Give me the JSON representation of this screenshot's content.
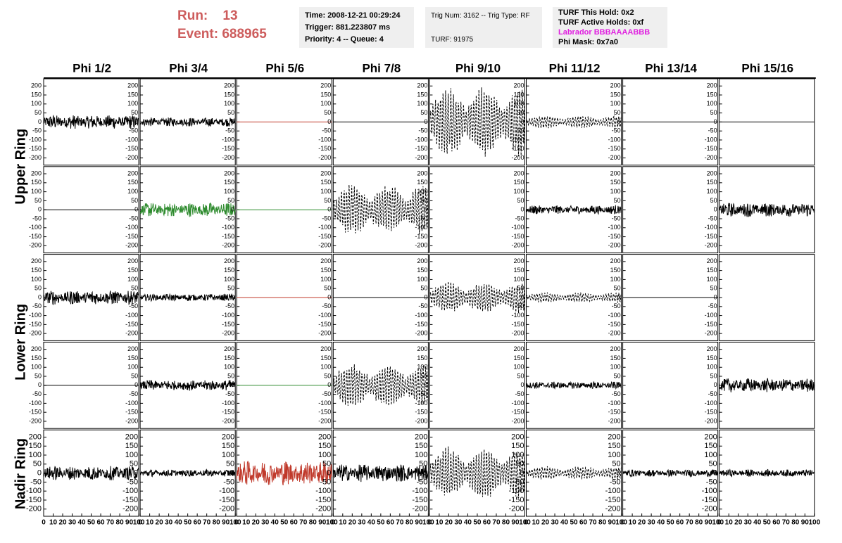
{
  "header": {
    "run_label": "Run:",
    "run": "13",
    "event_label": "Event:",
    "event": "688965"
  },
  "info": [
    [
      "Time: 2008-12-21 00:29:24",
      "Trigger: 881.223807 ms",
      "Priority: 4 -- Queue: 4"
    ],
    [
      "Trig Num: 3162 -- Trig Type: RF",
      "",
      "TURF: 91975"
    ],
    [
      "TURF This Hold: 0x2",
      "TURF Active Holds: 0xf",
      "Labrador BBBAAAABBB",
      "Phi Mask: 0x7a0"
    ]
  ],
  "columns": [
    "Phi 1/2",
    "Phi 3/4",
    "Phi 5/6",
    "Phi 7/8",
    "Phi 9/10",
    "Phi 11/12",
    "Phi 13/14",
    "Phi 15/16"
  ],
  "rings": [
    "Upper Ring",
    "Lower Ring",
    "Nadir Ring"
  ],
  "xlim": [
    0,
    100
  ],
  "ylim": [
    -240,
    240
  ],
  "xticks": [
    0,
    10,
    20,
    30,
    40,
    50,
    60,
    70,
    80,
    90,
    100
  ],
  "yticks": [
    -200,
    -150,
    -100,
    -50,
    0,
    50,
    100,
    150,
    200
  ],
  "panels": [
    [
      {
        "style": "noise",
        "color": "#000000",
        "amplitude": 40
      },
      {
        "style": "noise",
        "color": "#000000",
        "amplitude": 25
      },
      {
        "style": "flat",
        "color": "#c0392b",
        "amplitude": 0
      },
      {
        "style": "flat",
        "color": "#000000",
        "amplitude": 0
      },
      {
        "style": "dashed",
        "color": "#000000",
        "amplitude": 200
      },
      {
        "style": "dashed",
        "color": "#000000",
        "amplitude": 40
      },
      {
        "style": "flat",
        "color": "#000000",
        "amplitude": 0
      },
      {
        "style": "flat",
        "color": "#000000",
        "amplitude": 0
      }
    ],
    [
      {
        "style": "flat",
        "color": "#000000",
        "amplitude": 0
      },
      {
        "style": "noise",
        "color": "#2e8b2e",
        "amplitude": 40
      },
      {
        "style": "flat",
        "color": "#2e8b2e",
        "amplitude": 0
      },
      {
        "style": "dashed",
        "color": "#000000",
        "amplitude": 150
      },
      {
        "style": "none",
        "color": "#000000",
        "amplitude": 0
      },
      {
        "style": "noise",
        "color": "#000000",
        "amplitude": 25
      },
      {
        "style": "none",
        "color": "#000000",
        "amplitude": 0
      },
      {
        "style": "noise",
        "color": "#000000",
        "amplitude": 40
      }
    ],
    [
      {
        "style": "noise",
        "color": "#000000",
        "amplitude": 40
      },
      {
        "style": "noise",
        "color": "#000000",
        "amplitude": 20
      },
      {
        "style": "flat",
        "color": "#c0392b",
        "amplitude": 0
      },
      {
        "style": "flat",
        "color": "#000000",
        "amplitude": 0
      },
      {
        "style": "dashed",
        "color": "#000000",
        "amplitude": 90
      },
      {
        "style": "dashed",
        "color": "#000000",
        "amplitude": 30
      },
      {
        "style": "flat",
        "color": "#000000",
        "amplitude": 0
      },
      {
        "style": "none",
        "color": "#000000",
        "amplitude": 0
      }
    ],
    [
      {
        "style": "flat",
        "color": "#000000",
        "amplitude": 0
      },
      {
        "style": "noise",
        "color": "#000000",
        "amplitude": 30
      },
      {
        "style": "flat",
        "color": "#2e8b2e",
        "amplitude": 0
      },
      {
        "style": "dashed",
        "color": "#000000",
        "amplitude": 130
      },
      {
        "style": "none",
        "color": "#000000",
        "amplitude": 0
      },
      {
        "style": "noise",
        "color": "#000000",
        "amplitude": 20
      },
      {
        "style": "none",
        "color": "#000000",
        "amplitude": 0
      },
      {
        "style": "noise",
        "color": "#000000",
        "amplitude": 40
      }
    ],
    [
      {
        "style": "noise",
        "color": "#000000",
        "amplitude": 40
      },
      {
        "style": "noise",
        "color": "#000000",
        "amplitude": 20
      },
      {
        "style": "noise",
        "color": "#c0392b",
        "amplitude": 70
      },
      {
        "style": "noise",
        "color": "#000000",
        "amplitude": 50
      },
      {
        "style": "dashed",
        "color": "#000000",
        "amplitude": 150
      },
      {
        "style": "dashed",
        "color": "#000000",
        "amplitude": 40
      },
      {
        "style": "noise",
        "color": "#000000",
        "amplitude": 20
      },
      {
        "style": "noise",
        "color": "#000000",
        "amplitude": 20
      }
    ]
  ]
}
